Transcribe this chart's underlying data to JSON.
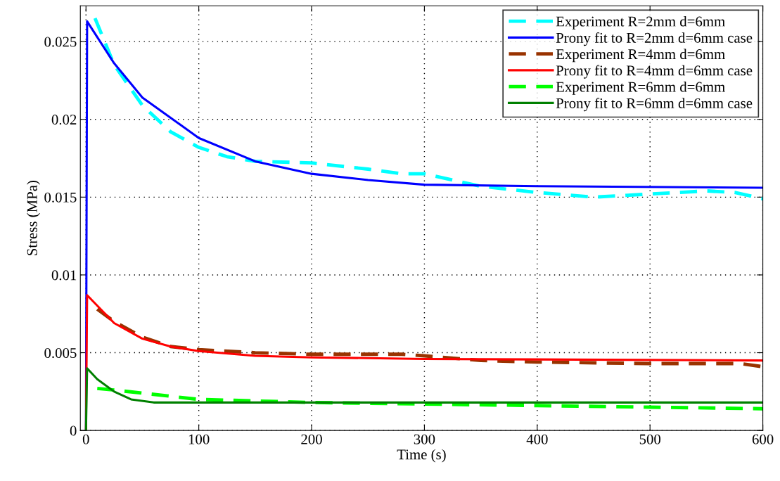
{
  "chart_data": {
    "type": "line",
    "xlabel": "Time (s)",
    "ylabel": "Stress (MPa)",
    "xlim": [
      -5,
      600
    ],
    "ylim": [
      0,
      0.0273
    ],
    "xticks": [
      0,
      100,
      200,
      300,
      400,
      500,
      600
    ],
    "yticks": [
      0,
      0.005,
      0.01,
      0.015,
      0.02,
      0.025
    ],
    "grid": true,
    "legend": "top right",
    "series": [
      {
        "name": "Experiment R=2mm d=6mm",
        "color": "#00ffff",
        "line_style": "dashed",
        "x": [
          8,
          25,
          50,
          75,
          100,
          125,
          150,
          200,
          250,
          280,
          300,
          350,
          400,
          450,
          500,
          550,
          575,
          600
        ],
        "values": [
          0.0265,
          0.0235,
          0.0209,
          0.0192,
          0.0182,
          0.0176,
          0.0173,
          0.0172,
          0.0168,
          0.0165,
          0.0165,
          0.0157,
          0.0153,
          0.015,
          0.0152,
          0.0154,
          0.0153,
          0.0149
        ]
      },
      {
        "name": "Prony fit to R=2mm d=6mm case",
        "color": "#0000ff",
        "line_style": "solid",
        "x": [
          0,
          1,
          25,
          50,
          100,
          150,
          200,
          250,
          300,
          400,
          600
        ],
        "values": [
          0,
          0.0263,
          0.0236,
          0.0214,
          0.0188,
          0.0173,
          0.0165,
          0.0161,
          0.0158,
          0.0157,
          0.0156
        ]
      },
      {
        "name": "Experiment R=4mm d=6mm",
        "color": "#993300",
        "line_style": "dashed",
        "x": [
          10,
          25,
          50,
          75,
          100,
          150,
          200,
          280,
          300,
          350,
          400,
          500,
          580,
          600
        ],
        "values": [
          0.0078,
          0.007,
          0.006,
          0.0054,
          0.0052,
          0.005,
          0.0049,
          0.0049,
          0.0048,
          0.0045,
          0.0044,
          0.0043,
          0.0043,
          0.0041
        ]
      },
      {
        "name": "Prony fit to R=4mm d=6mm case",
        "color": "#ff0000",
        "line_style": "solid",
        "x": [
          0,
          1,
          25,
          50,
          75,
          100,
          150,
          200,
          300,
          600
        ],
        "values": [
          0,
          0.0087,
          0.0069,
          0.0059,
          0.0054,
          0.0051,
          0.0048,
          0.0047,
          0.0046,
          0.0045
        ]
      },
      {
        "name": "Experiment R=6mm d=6mm",
        "color": "#00ff00",
        "line_style": "dashed",
        "x": [
          10,
          25,
          50,
          75,
          100,
          150,
          200,
          300,
          400,
          500,
          600
        ],
        "values": [
          0.0027,
          0.0026,
          0.0024,
          0.0022,
          0.002,
          0.0019,
          0.0018,
          0.0017,
          0.0016,
          0.0015,
          0.0014
        ]
      },
      {
        "name": "Prony fit to R=6mm d=6mm case",
        "color": "#008000",
        "line_style": "solid",
        "x": [
          0,
          1,
          10,
          25,
          40,
          60,
          100,
          600
        ],
        "values": [
          0,
          0.004,
          0.0033,
          0.0025,
          0.002,
          0.0018,
          0.0018,
          0.0018
        ]
      }
    ]
  }
}
